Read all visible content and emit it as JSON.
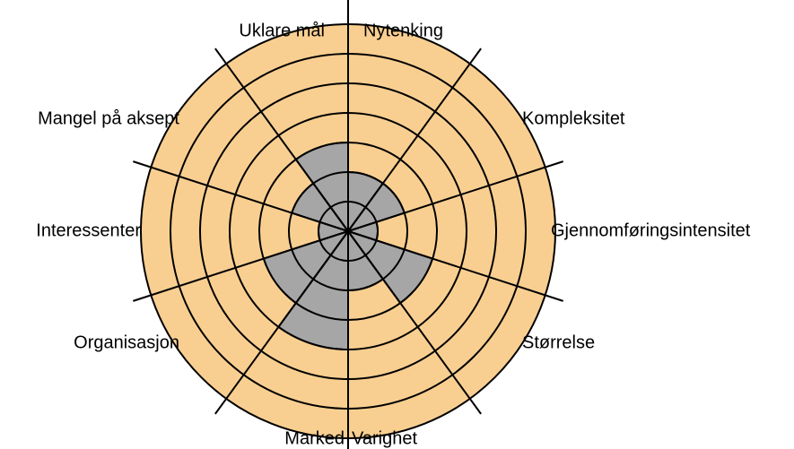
{
  "chart_data": {
    "type": "polar-sector",
    "categories": [
      "Nytenking",
      "Kompleksitet",
      "Gjennomføringsintensitet",
      "Størrelse",
      "Varighet",
      "Marked",
      "Organisasjon",
      "Interessenter",
      "Mangel på aksept",
      "Uklare mål"
    ],
    "values": [
      2,
      2,
      1,
      3,
      2,
      4,
      3,
      1,
      2,
      3
    ],
    "color": "#a6a6a6",
    "background": "#f9cf91",
    "rlim": [
      0,
      7
    ],
    "rticks": [
      1,
      2,
      3,
      4,
      5,
      6,
      7
    ],
    "grid": true
  }
}
